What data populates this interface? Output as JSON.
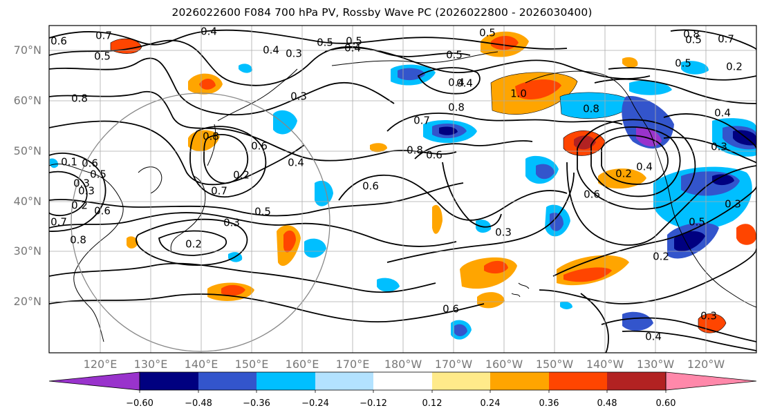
{
  "title": "2026022600 F084 700 hPa PV, Rossby Wave PC (2026022800 - 2026030400)",
  "lat_labels": [
    "70°N",
    "60°N",
    "50°N",
    "40°N",
    "30°N",
    "20°N"
  ],
  "lon_labels": [
    "120°E",
    "130°E",
    "140°E",
    "150°E",
    "160°E",
    "170°E",
    "180°W",
    "170°W",
    "160°W",
    "150°W",
    "140°W",
    "130°W",
    "120°W"
  ],
  "colorbar": {
    "ticks": [
      "−0.60",
      "−0.48",
      "−0.36",
      "−0.24",
      "−0.12",
      "0.12",
      "0.24",
      "0.36",
      "0.48",
      "0.60"
    ],
    "colors": [
      "#9933cc",
      "#000080",
      "#3355cc",
      "#00bfff",
      "#b3e2ff",
      "#ffffff",
      "#ffea8a",
      "#ffa500",
      "#ff4500",
      "#b22222",
      "#ff88aa"
    ]
  },
  "contour_labels": [
    "0.7",
    "0.6",
    "0.5",
    "0.4",
    "0.5",
    "0.3",
    "0.5",
    "0.4",
    "0.4",
    "0.5",
    "0.5",
    "0.5",
    "0.8",
    "0.3",
    "0.8",
    "0.7",
    "0.8",
    "0.4",
    "0.6",
    "0.8",
    "0.8",
    "0.6",
    "0.4",
    "0.2",
    "0.7",
    "0.6",
    "0.5",
    "0.3",
    "0.2",
    "0.3",
    "0.5",
    "0.6",
    "0.3",
    "0.8",
    "0.1",
    "0.7",
    "0.6",
    "0.2",
    "0.3",
    "0.4",
    "0.2",
    "0.3",
    "0.4",
    "0.5",
    "0.6",
    "0.2",
    "0.8",
    "1.0",
    "0.3",
    "0.2",
    "0.3",
    "0.7",
    "0.5",
    "0.4",
    "0.6",
    "0.4"
  ]
}
